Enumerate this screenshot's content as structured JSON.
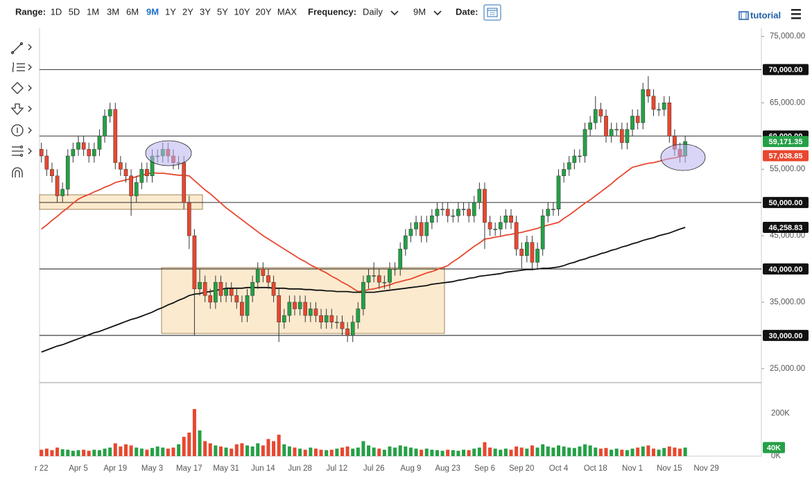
{
  "toolbar": {
    "range_label": "Range:",
    "ranges": [
      "1D",
      "5D",
      "1M",
      "3M",
      "6M",
      "9M",
      "1Y",
      "2Y",
      "3Y",
      "5Y",
      "10Y",
      "20Y",
      "MAX"
    ],
    "active_range": "9M",
    "frequency_label": "Frequency:",
    "frequency": "Daily",
    "period": "9M",
    "date_label": "Date:",
    "tutorial": "tutorial"
  },
  "chart_data": {
    "type": "candlestick",
    "categories": [
      "r 22",
      null,
      null,
      null,
      null,
      null,
      null,
      "Apr 5",
      null,
      null,
      null,
      null,
      null,
      null,
      "Apr 19",
      null,
      null,
      null,
      null,
      null,
      null,
      "May 3",
      null,
      null,
      null,
      null,
      null,
      null,
      "May 17",
      null,
      null,
      null,
      null,
      null,
      null,
      "May 31",
      null,
      null,
      null,
      null,
      null,
      null,
      "Jun 14",
      null,
      null,
      null,
      null,
      null,
      null,
      "Jun 28",
      null,
      null,
      null,
      null,
      null,
      null,
      "Jul 12",
      null,
      null,
      null,
      null,
      null,
      null,
      "Jul 26",
      null,
      null,
      null,
      null,
      null,
      null,
      "Aug 9",
      null,
      null,
      null,
      null,
      null,
      null,
      "Aug 23",
      null,
      null,
      null,
      null,
      null,
      null,
      "Sep 6",
      null,
      null,
      null,
      null,
      null,
      null,
      "Sep 20",
      null,
      null,
      null,
      null,
      null,
      null,
      "Oct 4",
      null,
      null,
      null,
      null,
      null,
      null,
      "Oct 18",
      null,
      null,
      null,
      null,
      null,
      null,
      "Nov 1",
      null,
      null,
      null,
      null,
      null,
      null,
      "Nov 15",
      null,
      null,
      null,
      null,
      null,
      null,
      "Nov 29"
    ],
    "open": [
      58000,
      57000,
      55000,
      54000,
      51000,
      52000,
      57000,
      58000,
      59000,
      58000,
      57000,
      58000,
      60000,
      63000,
      64000,
      56000,
      55000,
      54000,
      51000,
      53000,
      55000,
      54000,
      57000,
      57000,
      58000,
      57000,
      56000,
      56000,
      50000,
      45000,
      37000,
      38000,
      36000,
      35000,
      38000,
      36000,
      37000,
      36000,
      35000,
      33000,
      36000,
      38000,
      40000,
      39000,
      38000,
      36000,
      32000,
      33000,
      35000,
      34000,
      35000,
      33000,
      34000,
      33000,
      32000,
      33000,
      32000,
      32000,
      31000,
      30000,
      32000,
      34000,
      38000,
      39000,
      39000,
      38000,
      38000,
      40000,
      40000,
      43000,
      45000,
      46000,
      47000,
      45000,
      47000,
      48000,
      49000,
      49000,
      48000,
      48000,
      49000,
      49000,
      48000,
      50000,
      52000,
      47000,
      46000,
      46000,
      47000,
      48000,
      47000,
      43000,
      42000,
      44000,
      41000,
      43000,
      48000,
      49000,
      49000,
      54000,
      55000,
      56000,
      57000,
      57000,
      61000,
      62000,
      64000,
      63000,
      60000,
      61000,
      61000,
      59000,
      61000,
      63000,
      62000,
      67000,
      66000,
      64000,
      64000,
      65000,
      60000,
      58000,
      57000,
      null,
      null,
      null,
      null
    ],
    "high": [
      59000,
      58000,
      56000,
      55000,
      53000,
      58000,
      59000,
      60000,
      60000,
      59000,
      59000,
      61000,
      64000,
      65000,
      65000,
      57000,
      56000,
      55000,
      54000,
      56000,
      56000,
      58000,
      58000,
      59000,
      59000,
      58000,
      57000,
      57000,
      51000,
      46000,
      40000,
      39000,
      37000,
      39000,
      39000,
      38000,
      38000,
      37000,
      36000,
      37000,
      39000,
      41000,
      41000,
      40000,
      39000,
      37000,
      34000,
      36000,
      36000,
      36000,
      36000,
      35000,
      35000,
      34000,
      34000,
      34000,
      33000,
      33000,
      32000,
      33000,
      35000,
      39000,
      40000,
      41000,
      40000,
      39000,
      41000,
      41000,
      44000,
      46000,
      47000,
      48000,
      48000,
      48000,
      49000,
      50000,
      50000,
      50000,
      49000,
      50000,
      50000,
      50000,
      51000,
      53000,
      53000,
      48000,
      47000,
      48000,
      49000,
      49000,
      48000,
      44000,
      45000,
      45000,
      44000,
      49000,
      50000,
      50000,
      55000,
      56000,
      57000,
      58000,
      58000,
      62000,
      63000,
      66000,
      65000,
      64000,
      62000,
      62000,
      62000,
      62000,
      64000,
      64000,
      68000,
      69000,
      67000,
      65000,
      66000,
      66000,
      61000,
      59000,
      60000,
      null,
      null,
      null,
      null
    ],
    "low": [
      56000,
      54000,
      53000,
      50000,
      50000,
      51000,
      56000,
      57000,
      57000,
      56000,
      56000,
      57000,
      59000,
      62000,
      55000,
      54000,
      53000,
      48000,
      50000,
      52000,
      53000,
      53000,
      56000,
      56000,
      56000,
      55000,
      55000,
      49000,
      43000,
      30000,
      36000,
      35000,
      34000,
      34000,
      35000,
      35000,
      35000,
      34000,
      32000,
      32000,
      35000,
      37000,
      38000,
      37000,
      35000,
      29000,
      31000,
      32000,
      33000,
      33000,
      32000,
      32000,
      32000,
      31000,
      31000,
      31000,
      31000,
      30000,
      29000,
      29000,
      31000,
      33000,
      37000,
      38000,
      37000,
      37000,
      37000,
      39000,
      39000,
      42000,
      44000,
      45000,
      44000,
      44000,
      46000,
      47000,
      48000,
      47000,
      47000,
      47000,
      48000,
      47000,
      47000,
      49000,
      43000,
      45000,
      45000,
      45000,
      46000,
      46000,
      42000,
      40000,
      41000,
      40000,
      40000,
      42000,
      47000,
      48000,
      48000,
      53000,
      54000,
      55000,
      56000,
      56000,
      60000,
      61000,
      62000,
      59000,
      59000,
      60000,
      58000,
      58000,
      60000,
      61000,
      61000,
      65000,
      63000,
      63000,
      63000,
      59000,
      57000,
      56000,
      56000,
      null,
      null,
      null,
      null
    ],
    "close": [
      57000,
      55000,
      54000,
      51000,
      52000,
      57000,
      58000,
      59000,
      58000,
      57000,
      58000,
      60000,
      63000,
      64000,
      56000,
      55000,
      54000,
      51000,
      53000,
      55000,
      54000,
      57000,
      57000,
      58000,
      57000,
      56000,
      56000,
      50000,
      45000,
      37000,
      38000,
      36000,
      35000,
      38000,
      36000,
      37000,
      36000,
      35000,
      33000,
      36000,
      38000,
      40000,
      39000,
      38000,
      36000,
      32000,
      33000,
      35000,
      34000,
      35000,
      33000,
      34000,
      33000,
      32000,
      33000,
      32000,
      32000,
      31000,
      30000,
      32000,
      34000,
      38000,
      39000,
      39000,
      38000,
      38000,
      40000,
      40000,
      43000,
      45000,
      46000,
      47000,
      45000,
      47000,
      48000,
      49000,
      49000,
      48000,
      48000,
      49000,
      49000,
      48000,
      50000,
      52000,
      47000,
      46000,
      46000,
      47000,
      48000,
      47000,
      43000,
      42000,
      44000,
      41000,
      43000,
      48000,
      49000,
      49000,
      54000,
      55000,
      56000,
      57000,
      57000,
      61000,
      62000,
      64000,
      63000,
      60000,
      61000,
      61000,
      59000,
      61000,
      63000,
      62000,
      67000,
      66000,
      64000,
      64000,
      65000,
      60000,
      58000,
      57000,
      59171.35,
      null,
      null,
      null,
      null
    ],
    "last_label": "59,171.35",
    "up_color": "#25a046",
    "down_color": "#e8472f",
    "moving_averages": [
      {
        "color": "#e8472f",
        "last_label": "57,038.85",
        "values": [
          46000,
          46600,
          47300,
          47900,
          48600,
          49200,
          49900,
          50500,
          50900,
          51200,
          51600,
          51900,
          52300,
          52600,
          53000,
          53200,
          53400,
          53600,
          53900,
          54100,
          54300,
          54500,
          54400,
          54400,
          54300,
          54200,
          54100,
          54100,
          54000,
          53300,
          52600,
          51900,
          51300,
          50600,
          49900,
          49200,
          48600,
          48000,
          47400,
          46800,
          46200,
          45600,
          45000,
          44500,
          44000,
          43500,
          43000,
          42500,
          42000,
          41500,
          41100,
          40600,
          40200,
          39800,
          39400,
          38900,
          38500,
          38000,
          37600,
          37100,
          36600,
          36700,
          36900,
          37000,
          37200,
          37400,
          37600,
          37900,
          38100,
          38300,
          38500,
          38800,
          39100,
          39400,
          39600,
          39900,
          40200,
          40500,
          41100,
          41600,
          42200,
          42800,
          43400,
          43900,
          44500,
          44600,
          44800,
          44900,
          45100,
          45200,
          45400,
          45500,
          45700,
          45900,
          46100,
          46400,
          46600,
          46800,
          47000,
          47600,
          48100,
          48700,
          49300,
          49900,
          50400,
          51000,
          51600,
          52200,
          52800,
          53500,
          54100,
          54700,
          55300,
          55500,
          55700,
          55900,
          56000,
          56200,
          56400,
          56600,
          56700,
          56900,
          57038.85,
          null,
          null,
          null,
          null
        ]
      },
      {
        "color": "#111111",
        "last_label": "46,258.83",
        "values": [
          27500,
          27800,
          28100,
          28400,
          28600,
          28900,
          29200,
          29500,
          29800,
          30100,
          30400,
          30600,
          30900,
          31200,
          31500,
          31800,
          32100,
          32400,
          32600,
          32900,
          33200,
          33500,
          33900,
          34200,
          34600,
          34900,
          35300,
          35600,
          36000,
          36200,
          36300,
          36500,
          36600,
          36800,
          36900,
          37100,
          37100,
          37100,
          37100,
          37200,
          37200,
          37200,
          37200,
          37200,
          37100,
          37100,
          37100,
          37000,
          37000,
          37000,
          36900,
          36900,
          36800,
          36800,
          36700,
          36700,
          36600,
          36600,
          36600,
          36500,
          36500,
          36500,
          36500,
          36500,
          36600,
          36700,
          36800,
          36900,
          37000,
          37100,
          37200,
          37300,
          37400,
          37500,
          37700,
          37800,
          37900,
          38000,
          38100,
          38300,
          38400,
          38600,
          38700,
          38900,
          39000,
          39100,
          39200,
          39300,
          39500,
          39600,
          39700,
          39800,
          39900,
          39900,
          40000,
          40100,
          40100,
          40200,
          40300,
          40500,
          40800,
          41000,
          41300,
          41500,
          41800,
          42000,
          42300,
          42500,
          42800,
          43000,
          43300,
          43500,
          43800,
          44000,
          44300,
          44500,
          44700,
          45000,
          45200,
          45400,
          45700,
          46000,
          46258.83,
          null,
          null,
          null,
          null
        ]
      }
    ],
    "ylim": [
      23000,
      76500
    ],
    "yticks": [
      {
        "value": 25000,
        "label": "25,000.00"
      },
      {
        "value": 35000,
        "label": "35,000.00"
      },
      {
        "value": 45000,
        "label": "45,000.00"
      },
      {
        "value": 55000,
        "label": "55,000.00"
      },
      {
        "value": 65000,
        "label": "65,000.00"
      },
      {
        "value": 75000,
        "label": "75,000.00"
      }
    ],
    "levels": [
      {
        "value": 70000,
        "label": "70,000.00"
      },
      {
        "value": 60000,
        "label": "60,000.00"
      },
      {
        "value": 50000,
        "label": "50,000.00"
      },
      {
        "value": 40000,
        "label": "40,000.00"
      },
      {
        "value": 30000,
        "label": "30,000.00"
      }
    ],
    "volume": {
      "last_label": "40K",
      "ylim": [
        0,
        340000
      ],
      "yticks": [
        {
          "value": 0,
          "label": "0K"
        },
        {
          "value": 200000,
          "label": "200K"
        }
      ],
      "values": [
        30000,
        35000,
        28000,
        40000,
        32000,
        30000,
        25000,
        28000,
        30000,
        25000,
        30000,
        28000,
        35000,
        40000,
        60000,
        45000,
        55000,
        50000,
        40000,
        35000,
        30000,
        38000,
        45000,
        40000,
        35000,
        40000,
        55000,
        90000,
        110000,
        220000,
        120000,
        70000,
        60000,
        50000,
        45000,
        40000,
        35000,
        55000,
        60000,
        50000,
        45000,
        60000,
        50000,
        80000,
        70000,
        100000,
        55000,
        45000,
        40000,
        35000,
        30000,
        40000,
        35000,
        30000,
        28000,
        30000,
        35000,
        40000,
        45000,
        35000,
        40000,
        70000,
        50000,
        40000,
        35000,
        30000,
        45000,
        40000,
        50000,
        45000,
        40000,
        35000,
        30000,
        35000,
        30000,
        28000,
        25000,
        30000,
        28000,
        25000,
        30000,
        28000,
        35000,
        40000,
        65000,
        40000,
        35000,
        30000,
        35000,
        30000,
        45000,
        40000,
        35000,
        50000,
        40000,
        55000,
        45000,
        40000,
        50000,
        45000,
        40000,
        38000,
        45000,
        55000,
        50000,
        40000,
        35000,
        38000,
        30000,
        35000,
        30000,
        28000,
        35000,
        40000,
        45000,
        50000,
        35000,
        30000,
        38000,
        45000,
        40000,
        35000,
        40000,
        null,
        null,
        null,
        null
      ]
    }
  }
}
